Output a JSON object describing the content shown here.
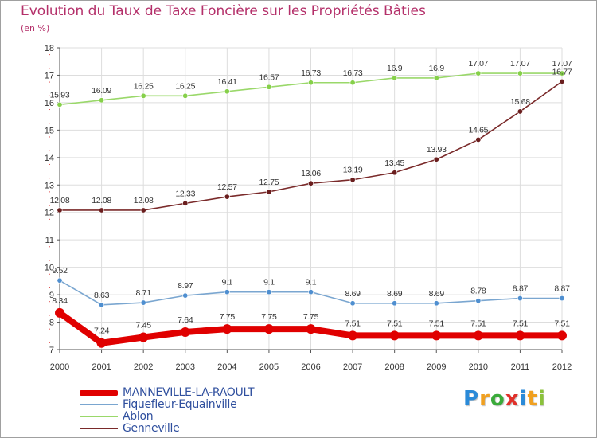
{
  "header": {
    "title": "Evolution du Taux de Taxe Foncière sur les Propriétés Bâties",
    "unit": "(en %)"
  },
  "brand": {
    "letters": [
      "P",
      "r",
      "o",
      "x",
      "i",
      "t",
      "i"
    ],
    "colors": [
      "#2a8ad8",
      "#f0a020",
      "#3aaa3a",
      "#e0302a",
      "#2a8ad8",
      "#f0a020",
      "#8ac23a"
    ]
  },
  "colors": {
    "axis": "#555555",
    "grid": "#dddddd",
    "label": "#333333"
  },
  "chart_data": {
    "type": "line",
    "title": "Evolution du Taux de Taxe Foncière sur les Propriétés Bâties",
    "ylabel": "(en %)",
    "xlabel": "",
    "ylim": [
      7,
      18
    ],
    "y_ticks": [
      "7",
      "8",
      "9",
      "10",
      "11",
      "12",
      "13",
      "14",
      "15",
      "16",
      "17",
      "18"
    ],
    "categories": [
      "2000",
      "2001",
      "2002",
      "2003",
      "2004",
      "2005",
      "2006",
      "2007",
      "2008",
      "2009",
      "2010",
      "2011",
      "2012"
    ],
    "legend_position": "bottom-left",
    "series": [
      {
        "name": "MANNEVILLE-LA-RAOULT",
        "color": "#e00000",
        "marker_color": "#e00000",
        "thick": true,
        "values": [
          8.34,
          7.24,
          7.45,
          7.64,
          7.75,
          7.75,
          7.75,
          7.51,
          7.51,
          7.51,
          7.51,
          7.51,
          7.51
        ],
        "labels": [
          "8.34",
          "7.24",
          "7.45",
          "7.64",
          "7.75",
          "7.75",
          "7.75",
          "7.51",
          "7.51",
          "7.51",
          "7.51",
          "7.51",
          "7.51"
        ]
      },
      {
        "name": "Fiquefleur-Equainville",
        "color": "#7aa6d0",
        "marker_color": "#4f8fd0",
        "thick": false,
        "values": [
          9.52,
          8.63,
          8.71,
          8.97,
          9.1,
          9.1,
          9.1,
          8.69,
          8.69,
          8.69,
          8.78,
          8.87,
          8.87
        ],
        "labels": [
          "9.52",
          "8.63",
          "8.71",
          "8.97",
          "9.1",
          "9.1",
          "9.1",
          "8.69",
          "8.69",
          "8.69",
          "8.78",
          "8.87",
          "8.87"
        ]
      },
      {
        "name": "Ablon",
        "color": "#9ad86a",
        "marker_color": "#86d04a",
        "thick": false,
        "values": [
          15.93,
          16.09,
          16.25,
          16.25,
          16.41,
          16.57,
          16.73,
          16.73,
          16.9,
          16.9,
          17.07,
          17.07,
          17.07
        ],
        "labels": [
          "15.93",
          "16.09",
          "16.25",
          "16.25",
          "16.41",
          "16.57",
          "16.73",
          "16.73",
          "16.9",
          "16.9",
          "17.07",
          "17.07",
          "17.07"
        ]
      },
      {
        "name": "Genneville",
        "color": "#7a2a2a",
        "marker_color": "#6a1e1e",
        "thick": false,
        "values": [
          12.08,
          12.08,
          12.08,
          12.33,
          12.57,
          12.75,
          13.06,
          13.19,
          13.45,
          13.93,
          14.65,
          15.68,
          16.77
        ],
        "labels": [
          "12.08",
          "12.08",
          "12.08",
          "12.33",
          "12.57",
          "12.75",
          "13.06",
          "13.19",
          "13.45",
          "13.93",
          "14.65",
          "15.68",
          "16.77"
        ]
      }
    ]
  }
}
